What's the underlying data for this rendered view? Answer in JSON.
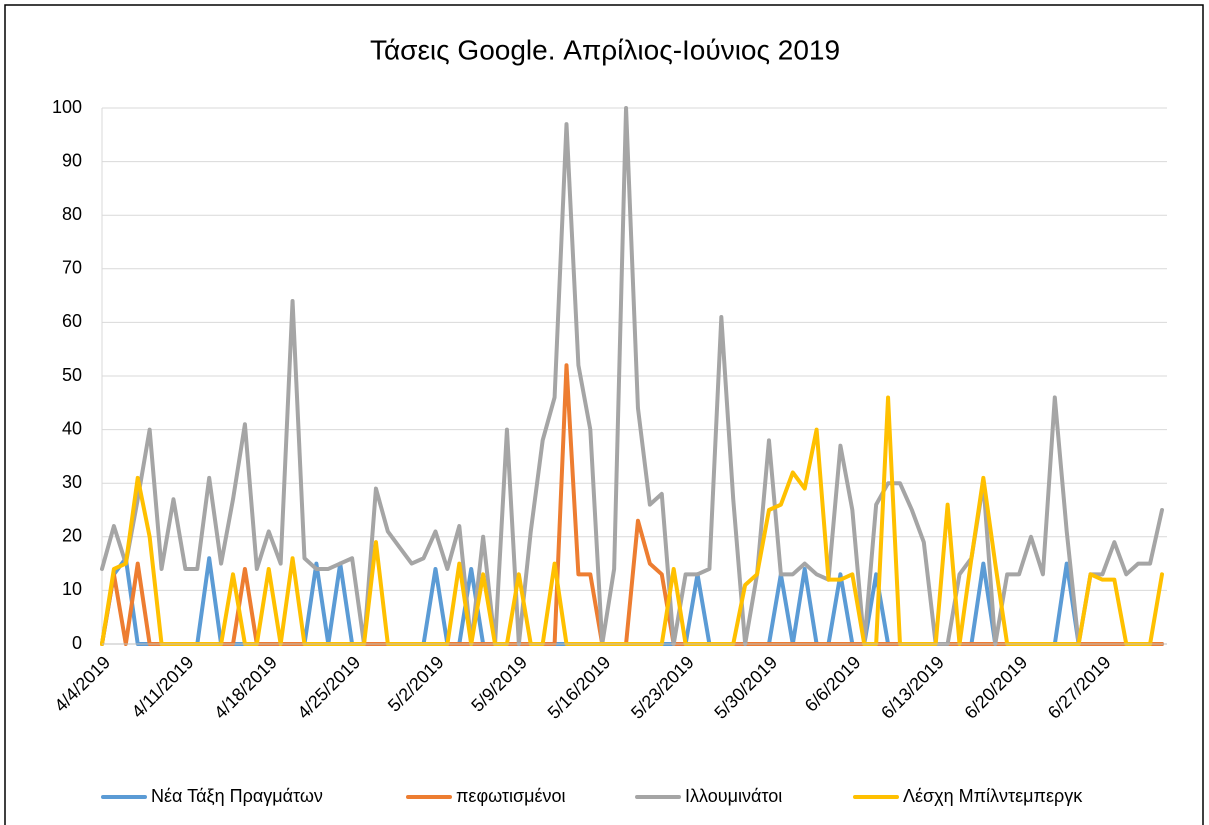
{
  "chart_data": {
    "type": "line",
    "title": "Τάσεις Google. Απρίλιος-Ιούνιος 2019",
    "categories": [
      "4/4/2019",
      null,
      null,
      null,
      null,
      null,
      null,
      "4/11/2019",
      null,
      null,
      null,
      null,
      null,
      null,
      "4/18/2019",
      null,
      null,
      null,
      null,
      null,
      null,
      "4/25/2019",
      null,
      null,
      null,
      null,
      null,
      null,
      "5/2/2019",
      null,
      null,
      null,
      null,
      null,
      null,
      "5/9/2019",
      null,
      null,
      null,
      null,
      null,
      null,
      "5/16/2019",
      null,
      null,
      null,
      null,
      null,
      null,
      "5/23/2019",
      null,
      null,
      null,
      null,
      null,
      null,
      "5/30/2019",
      null,
      null,
      null,
      null,
      null,
      null,
      "6/6/2019",
      null,
      null,
      null,
      null,
      null,
      null,
      "6/13/2019",
      null,
      null,
      null,
      null,
      null,
      null,
      "6/20/2019",
      null,
      null,
      null,
      null,
      null,
      null,
      "6/27/2019",
      null,
      null,
      null,
      null,
      null
    ],
    "series": [
      {
        "name": "Νέα Τάξη Πραγμάτων",
        "color": "#5b9bd5",
        "values": [
          0,
          13,
          16,
          0,
          0,
          0,
          0,
          0,
          0,
          16,
          0,
          0,
          0,
          0,
          0,
          0,
          0,
          0,
          15,
          0,
          15,
          0,
          0,
          0,
          0,
          0,
          0,
          0,
          14,
          0,
          0,
          14,
          0,
          0,
          0,
          0,
          0,
          0,
          0,
          0,
          0,
          0,
          0,
          0,
          0,
          0,
          0,
          0,
          0,
          0,
          13,
          0,
          0,
          0,
          0,
          0,
          0,
          13,
          0,
          14,
          0,
          0,
          13,
          0,
          0,
          13,
          0,
          0,
          0,
          0,
          0,
          0,
          0,
          0,
          15,
          0,
          0,
          0,
          0,
          0,
          0,
          15,
          0,
          0,
          0,
          0,
          0,
          0,
          0,
          0
        ]
      },
      {
        "name": "πεφωτισμένοι",
        "color": "#ed7d31",
        "values": [
          0,
          13,
          0,
          15,
          0,
          0,
          0,
          0,
          0,
          0,
          0,
          0,
          14,
          0,
          0,
          0,
          0,
          0,
          0,
          0,
          0,
          0,
          0,
          0,
          0,
          0,
          0,
          0,
          0,
          0,
          0,
          0,
          0,
          0,
          0,
          0,
          0,
          0,
          0,
          52,
          13,
          13,
          0,
          0,
          0,
          23,
          15,
          13,
          0,
          0,
          0,
          0,
          0,
          0,
          0,
          0,
          0,
          0,
          0,
          0,
          0,
          0,
          0,
          0,
          0,
          0,
          0,
          0,
          0,
          0,
          0,
          0,
          0,
          0,
          0,
          0,
          0,
          0,
          0,
          0,
          0,
          0,
          0,
          0,
          0,
          0,
          0,
          0,
          0,
          0
        ]
      },
      {
        "name": "Ιλλουμινάτοι",
        "color": "#a5a5a5",
        "values": [
          14,
          22,
          15,
          27,
          40,
          14,
          27,
          14,
          14,
          31,
          15,
          27,
          41,
          14,
          21,
          15,
          64,
          16,
          14,
          14,
          15,
          16,
          0,
          29,
          21,
          18,
          15,
          16,
          21,
          14,
          22,
          0,
          20,
          0,
          40,
          0,
          21,
          38,
          46,
          97,
          52,
          40,
          0,
          14,
          100,
          44,
          26,
          28,
          0,
          13,
          13,
          14,
          61,
          27,
          0,
          13,
          38,
          13,
          13,
          15,
          13,
          12,
          37,
          25,
          0,
          26,
          30,
          30,
          25,
          19,
          0,
          0,
          13,
          16,
          30,
          0,
          13,
          13,
          20,
          13,
          46,
          21,
          0,
          13,
          13,
          19,
          13,
          15,
          15,
          25
        ]
      },
      {
        "name": "Λέσχη Μπίλντεμπεργκ",
        "color": "#ffc000",
        "values": [
          0,
          14,
          15,
          31,
          20,
          0,
          0,
          0,
          0,
          0,
          0,
          13,
          0,
          0,
          14,
          0,
          16,
          0,
          0,
          0,
          0,
          0,
          0,
          19,
          0,
          0,
          0,
          0,
          0,
          0,
          15,
          0,
          13,
          0,
          0,
          13,
          0,
          0,
          15,
          0,
          0,
          0,
          0,
          0,
          0,
          0,
          0,
          0,
          14,
          0,
          0,
          0,
          0,
          0,
          11,
          13,
          25,
          26,
          32,
          29,
          40,
          12,
          12,
          13,
          0,
          0,
          46,
          0,
          0,
          0,
          0,
          26,
          0,
          16,
          31,
          15,
          0,
          0,
          0,
          0,
          0,
          0,
          0,
          13,
          12,
          12,
          0,
          0,
          0,
          13
        ]
      }
    ],
    "ylim": [
      0,
      100
    ],
    "yticks": [
      0,
      10,
      20,
      30,
      40,
      50,
      60,
      70,
      80,
      90,
      100
    ],
    "grid": true,
    "legend": "bottom"
  }
}
